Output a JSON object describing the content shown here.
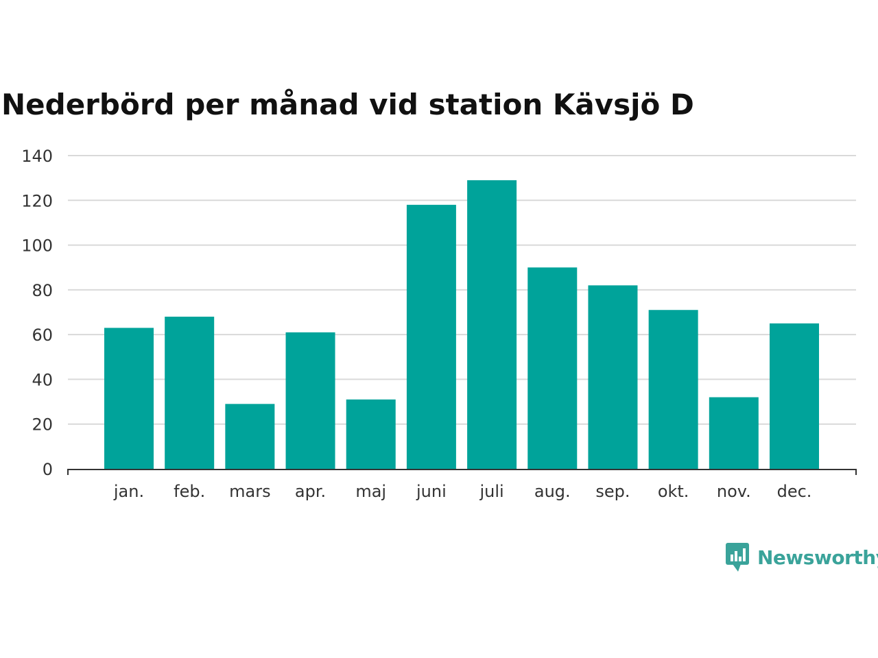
{
  "chart_data": {
    "type": "bar",
    "title": "Nederbörd per månad vid station Kävsjö D",
    "xlabel": "",
    "ylabel": "",
    "categories": [
      "jan.",
      "feb.",
      "mars",
      "apr.",
      "maj",
      "juni",
      "juli",
      "aug.",
      "sep.",
      "okt.",
      "nov.",
      "dec."
    ],
    "values": [
      63,
      68,
      29,
      61,
      31,
      118,
      129,
      90,
      82,
      71,
      32,
      65
    ],
    "ylim": [
      0,
      140
    ],
    "yticks": [
      0,
      20,
      40,
      60,
      80,
      100,
      120,
      140
    ],
    "grid": true,
    "legend": "none",
    "bar_color": "#00a39a"
  },
  "brand": {
    "name": "Newsworthy",
    "icon": "newsworthy-logo-icon",
    "color": "#3aa39a"
  }
}
